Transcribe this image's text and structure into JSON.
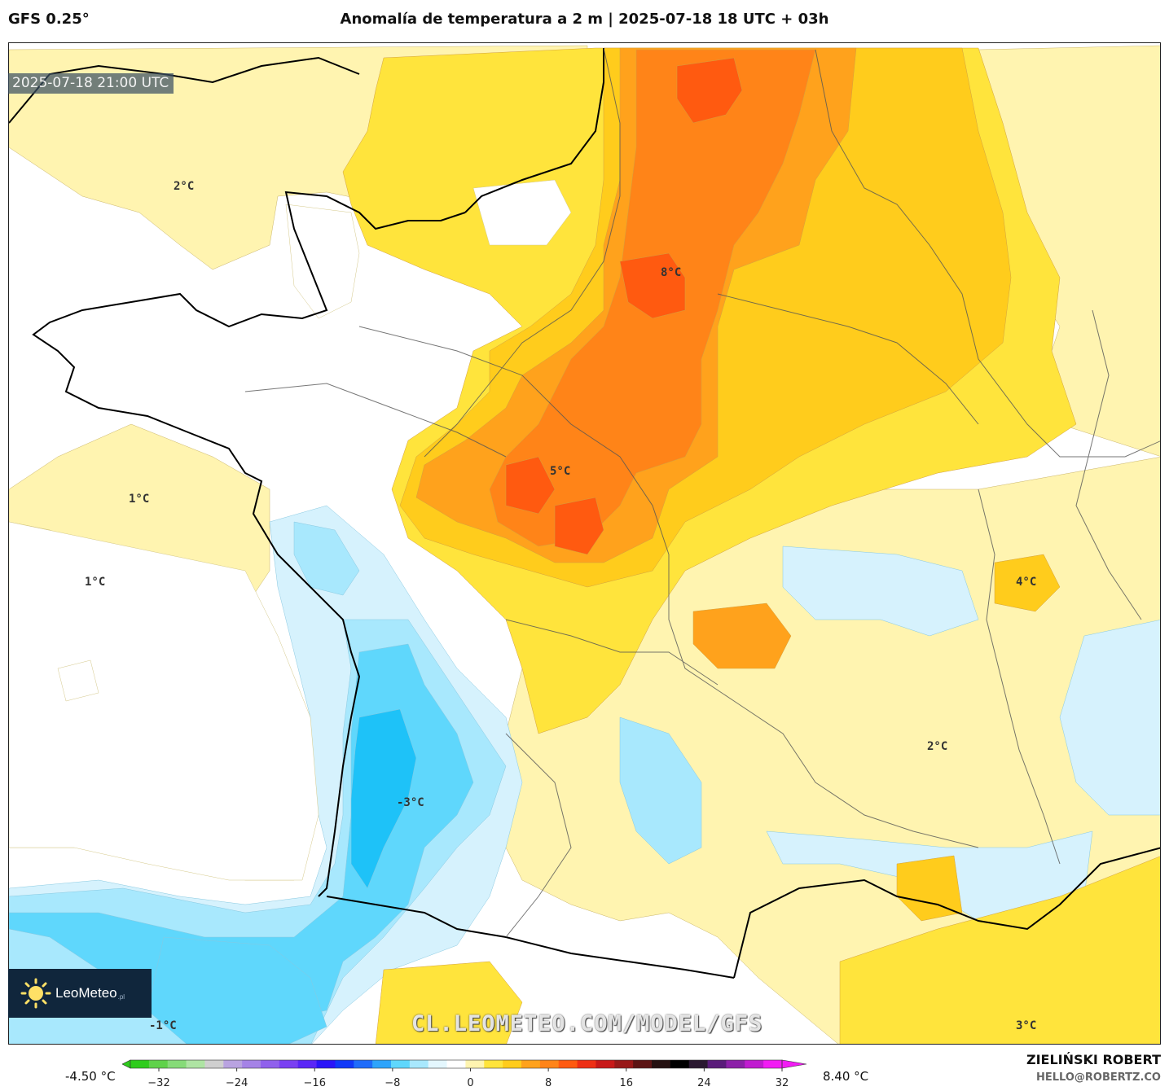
{
  "header": {
    "model": "GFS 0.25°",
    "title": "Anomalía de temperatura a 2 m | 2025-07-18 18 UTC + 03h"
  },
  "map": {
    "timestamp": "2025-07-18 21:00 UTC",
    "watermark": "CL.LEOMETEO.COM/MODEL/GFS",
    "logo": {
      "name": "LeoMeteo",
      "suffix": ".pl",
      "icon": "sun-icon"
    },
    "labels": [
      "2°C",
      "8°C",
      "5°C",
      "1°C",
      "1°C",
      "4°C",
      "2°C",
      "-3°C",
      "-1°C",
      "3°C"
    ],
    "colors": {
      "pale_yellow": "#fff4b0",
      "yellow": "#ffe43c",
      "gold": "#ffcc1c",
      "light_orange": "#ffa21c",
      "orange": "#ff8418",
      "dark_orange": "#ff5a10",
      "pale_blue": "#d6f2fd",
      "light_blue": "#a8e8fd",
      "cyan": "#5fd7fc",
      "deep_cyan": "#1ec2f8"
    }
  },
  "colorbar": {
    "min_label": "-4.50 °C",
    "max_label": "8.40 °C",
    "ticks": [
      "−32",
      "−24",
      "−16",
      "−8",
      "0",
      "8",
      "16",
      "24",
      "32"
    ],
    "colors": [
      "#2ecc1c",
      "#5fd24a",
      "#86db78",
      "#aee4a3",
      "#cfcfcf",
      "#b9a3e0",
      "#a583e6",
      "#9061ec",
      "#7a40f2",
      "#5a26f6",
      "#2a14f8",
      "#1038f8",
      "#1e6cfa",
      "#2ea4fb",
      "#5fd7fc",
      "#a8e8fd",
      "#e4f7fe",
      "#ffffff",
      "#fff4b0",
      "#ffe43c",
      "#ffcc1c",
      "#ffa21c",
      "#ff8418",
      "#ff5a10",
      "#ee2f14",
      "#c81818",
      "#981818",
      "#5c1414",
      "#241010",
      "#000000",
      "#2a1830",
      "#5a1c7a",
      "#8c20a8",
      "#c01cd0",
      "#f21cf4"
    ]
  },
  "credits": {
    "author": "ZIELIŃSKI ROBERT",
    "email": "HELLO@ROBERTZ.CO"
  }
}
